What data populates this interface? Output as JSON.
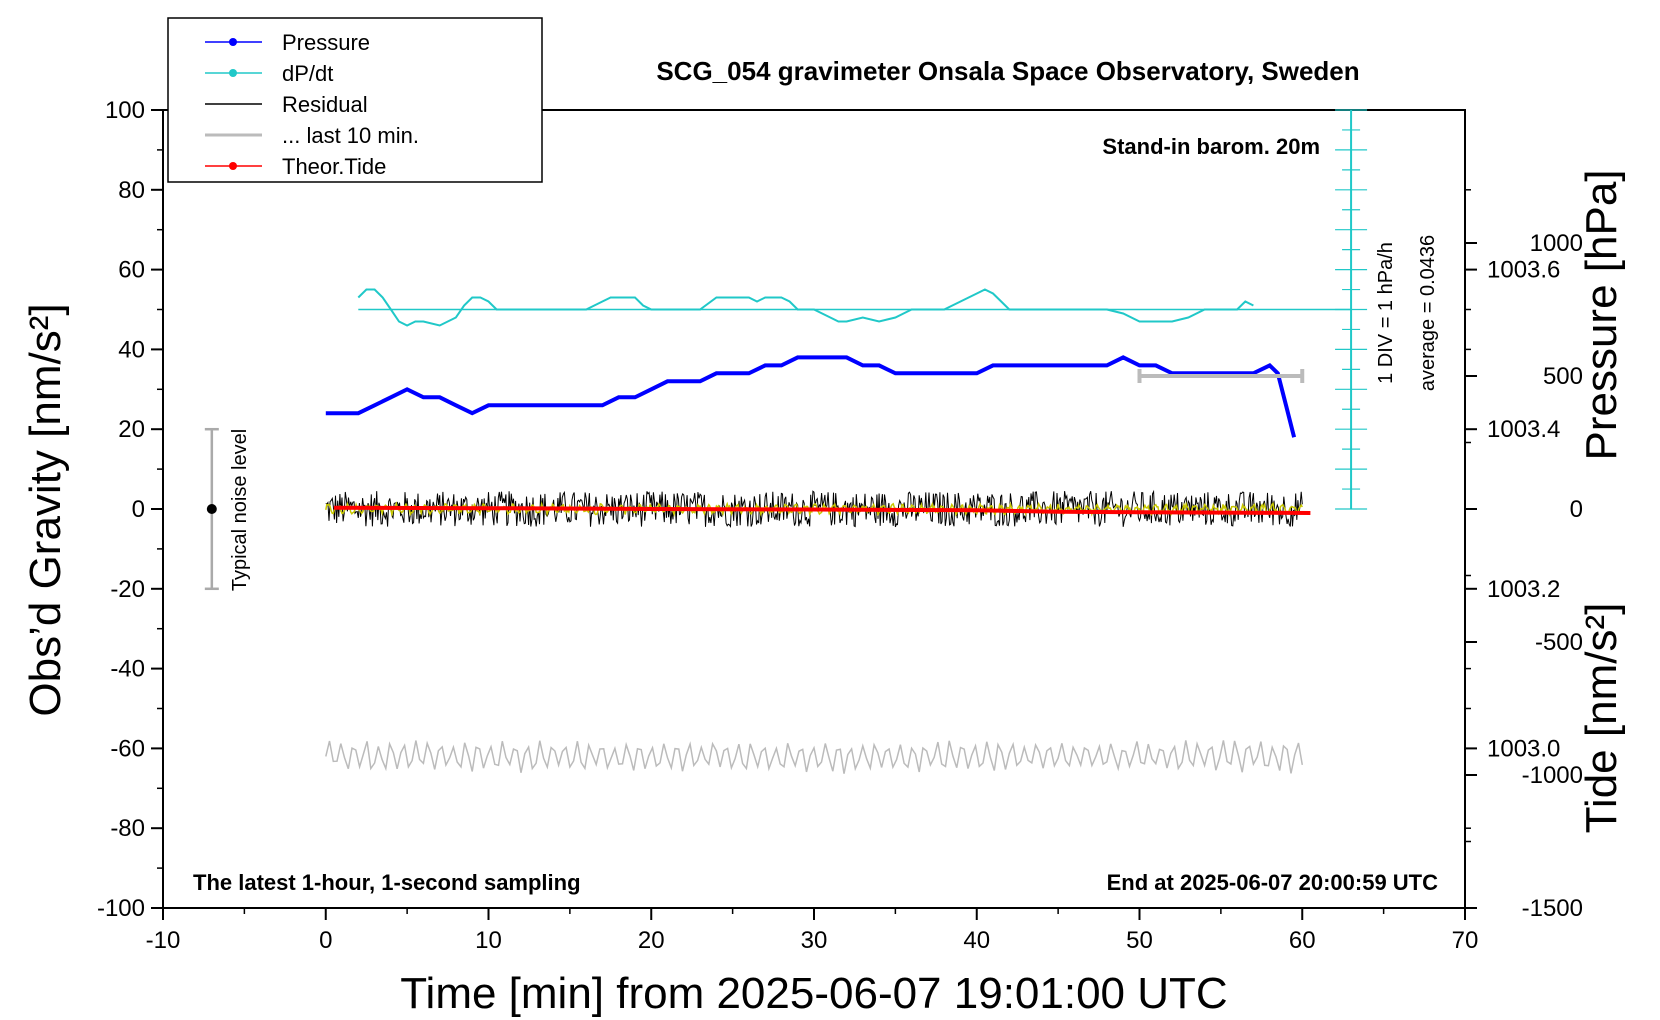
{
  "chart_data": {
    "type": "line",
    "title": "SCG_054 gravimeter Onsala Space Observatory, Sweden",
    "xlabel": "Time [min] from 2025-06-07 19:01:00 UTC",
    "ylabel_left": "Obs’d Gravity [nm/s²]",
    "ylabel_pressure": "Pressure [hPa]",
    "ylabel_tide": "Tide [nm/s²]",
    "xlim": [
      -10,
      70
    ],
    "ylim": [
      -100,
      100
    ],
    "x_ticks": [
      "-10",
      "0",
      "10",
      "20",
      "30",
      "40",
      "50",
      "60",
      "70"
    ],
    "y_ticks": [
      "100",
      "80",
      "60",
      "40",
      "20",
      "0",
      "-20",
      "-40",
      "-60",
      "-80",
      "-100"
    ],
    "pressure_ticks": [
      "1003.6",
      "1003.4",
      "1003.2",
      "1003.0"
    ],
    "pressure_range": [
      1002.8,
      1003.8
    ],
    "tide_ticks": [
      "1000",
      "500",
      "0",
      "-500",
      "-1000",
      "-1500"
    ],
    "tide_range": [
      -1500,
      1500
    ],
    "notes": {
      "barom": "Stand-in barom. 20m",
      "latest": "The latest 1-hour, 1-second sampling",
      "end": "End at 2025-06-07 20:00:59 UTC",
      "scale": "1 DIV = 1 hPa/h",
      "average": "average = 0.0436",
      "noise": "Typical noise level"
    },
    "legend_placement": "top-left",
    "legend": [
      {
        "label": "Pressure",
        "color": "#0000ff"
      },
      {
        "label": "dP/dt",
        "color": "#20c8c8"
      },
      {
        "label": "Residual",
        "color": "#000000"
      },
      {
        "label": "... last 10 min.",
        "color": "#bbbbbb"
      },
      {
        "label": "Theor.Tide",
        "color": "#ff0000"
      }
    ],
    "colors": {
      "pressure": "#0000ff",
      "dpdt": "#20c8c8",
      "residual": "#000000",
      "residual_smooth": "#c8c800",
      "last10": "#bbbbbb",
      "tide": "#ff0000"
    },
    "series": [
      {
        "name": "Pressure",
        "axis": "pressure",
        "x": [
          0,
          1,
          2,
          3,
          4,
          5,
          6,
          7,
          8,
          9,
          10,
          11,
          12,
          13,
          14,
          15,
          16,
          17,
          18,
          19,
          20,
          21,
          22,
          23,
          24,
          25,
          26,
          27,
          28,
          29,
          30,
          31,
          32,
          33,
          34,
          35,
          36,
          37,
          38,
          39,
          40,
          41,
          42,
          43,
          44,
          45,
          46,
          47,
          48,
          49,
          50,
          51,
          52,
          53,
          54,
          55,
          56,
          57,
          58,
          58.5,
          59,
          59.5
        ],
        "y": [
          1003.42,
          1003.42,
          1003.42,
          1003.43,
          1003.44,
          1003.45,
          1003.44,
          1003.44,
          1003.43,
          1003.42,
          1003.43,
          1003.43,
          1003.43,
          1003.43,
          1003.43,
          1003.43,
          1003.43,
          1003.43,
          1003.44,
          1003.44,
          1003.45,
          1003.46,
          1003.46,
          1003.46,
          1003.47,
          1003.47,
          1003.47,
          1003.48,
          1003.48,
          1003.49,
          1003.49,
          1003.49,
          1003.49,
          1003.48,
          1003.48,
          1003.47,
          1003.47,
          1003.47,
          1003.47,
          1003.47,
          1003.47,
          1003.48,
          1003.48,
          1003.48,
          1003.48,
          1003.48,
          1003.48,
          1003.48,
          1003.48,
          1003.49,
          1003.48,
          1003.48,
          1003.47,
          1003.47,
          1003.47,
          1003.47,
          1003.47,
          1003.47,
          1003.48,
          1003.47,
          1003.43,
          1003.39
        ]
      },
      {
        "name": "dP/dt",
        "axis": "gravity",
        "x": [
          2,
          2.5,
          3,
          3.5,
          4,
          4.5,
          5,
          5.5,
          6,
          7,
          8,
          8.5,
          9,
          9.5,
          10,
          10.5,
          11,
          12,
          13,
          14,
          15,
          16,
          17,
          17.5,
          18,
          19,
          19.5,
          20,
          21,
          22,
          23,
          24,
          24.5,
          25,
          26,
          26.5,
          27,
          28,
          28.5,
          29,
          30,
          31,
          31.5,
          32,
          33,
          34,
          35,
          35.5,
          36,
          37,
          38,
          39,
          40,
          40.5,
          41,
          41.5,
          42,
          43,
          44,
          45,
          46,
          47,
          48,
          49,
          50,
          51,
          52,
          53,
          54,
          55,
          56,
          56.5,
          57
        ],
        "y": [
          53,
          55,
          55,
          53,
          50,
          47,
          46,
          47,
          47,
          46,
          48,
          51,
          53,
          53,
          52,
          50,
          50,
          50,
          50,
          50,
          50,
          50,
          52,
          53,
          53,
          53,
          51,
          50,
          50,
          50,
          50,
          53,
          53,
          53,
          53,
          52,
          53,
          53,
          52,
          50,
          50,
          48,
          47,
          47,
          48,
          47,
          48,
          49,
          50,
          50,
          50,
          52,
          54,
          55,
          54,
          52,
          50,
          50,
          50,
          50,
          50,
          50,
          50,
          49,
          47,
          47,
          47,
          48,
          50,
          50,
          50,
          52,
          51
        ]
      },
      {
        "name": "Residual",
        "axis": "gravity",
        "x_range": [
          0,
          60
        ],
        "level": 0,
        "amplitude": 4.5
      },
      {
        "name": "... last 10 min.",
        "axis": "gravity",
        "x_range": [
          0,
          60
        ],
        "level": -62,
        "amplitude": 4
      },
      {
        "name": "Theor.Tide",
        "axis": "tide",
        "x": [
          0.5,
          10,
          20,
          30,
          40,
          45,
          50,
          60.5
        ],
        "y": [
          5,
          3,
          0,
          -2,
          -5,
          -10,
          -12,
          -15
        ]
      }
    ],
    "noise_bar": {
      "x": -7,
      "y": 0,
      "range": [
        -20,
        20
      ]
    },
    "last10_bracket": {
      "x": [
        50,
        60
      ]
    },
    "scale_bar": {
      "x": 63,
      "y_top": 100,
      "y_bottom": 0,
      "divisions": 20
    }
  }
}
